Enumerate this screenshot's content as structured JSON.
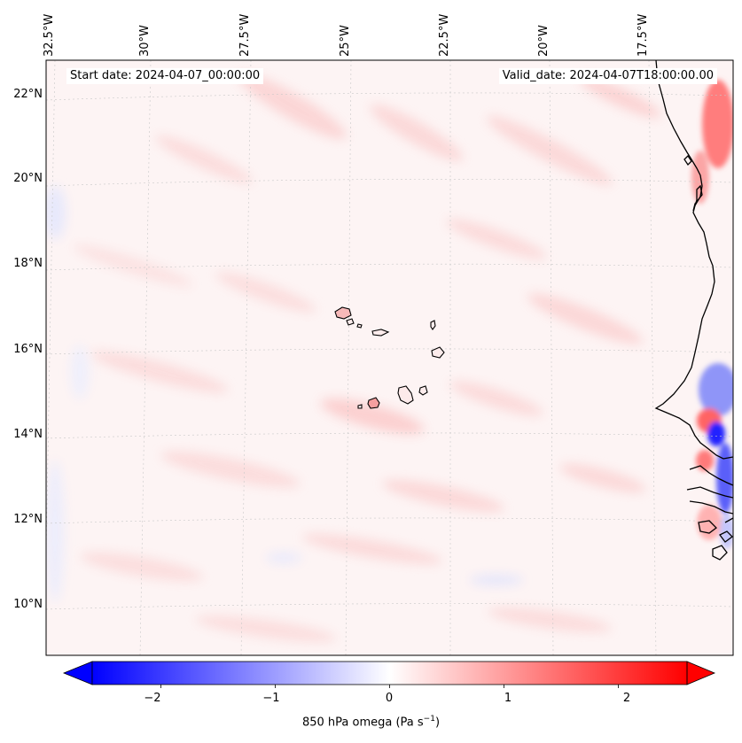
{
  "map": {
    "variable": "850 hPa omega",
    "start_date_text": "Start date: 2024-04-07_00:00:00",
    "valid_date_text": "Valid_date: 2024-04-07T18:00:00.00",
    "longitude_labels": [
      "32.5°W",
      "30°W",
      "27.5°W",
      "25°W",
      "22.5°W",
      "20°W",
      "17.5°W"
    ],
    "latitude_labels": [
      "22°N",
      "20°N",
      "18°N",
      "16°N",
      "14°N",
      "12°N",
      "10°N"
    ],
    "features": [
      "Cape Verde islands",
      "West African coastline"
    ]
  },
  "colorbar": {
    "label": "850 hPa omega (Pa s",
    "label_sup": "−1",
    "label_close": ")",
    "ticks": [
      "−2",
      "−1",
      "0",
      "1",
      "2"
    ],
    "tick_values": [
      -2,
      -1,
      0,
      1,
      2
    ],
    "range": [
      -2.6,
      2.6
    ],
    "extend": "both",
    "cmap": "bwr",
    "min_color": "#0000ff",
    "mid_color": "#ffffff",
    "max_color": "#ff0000"
  }
}
